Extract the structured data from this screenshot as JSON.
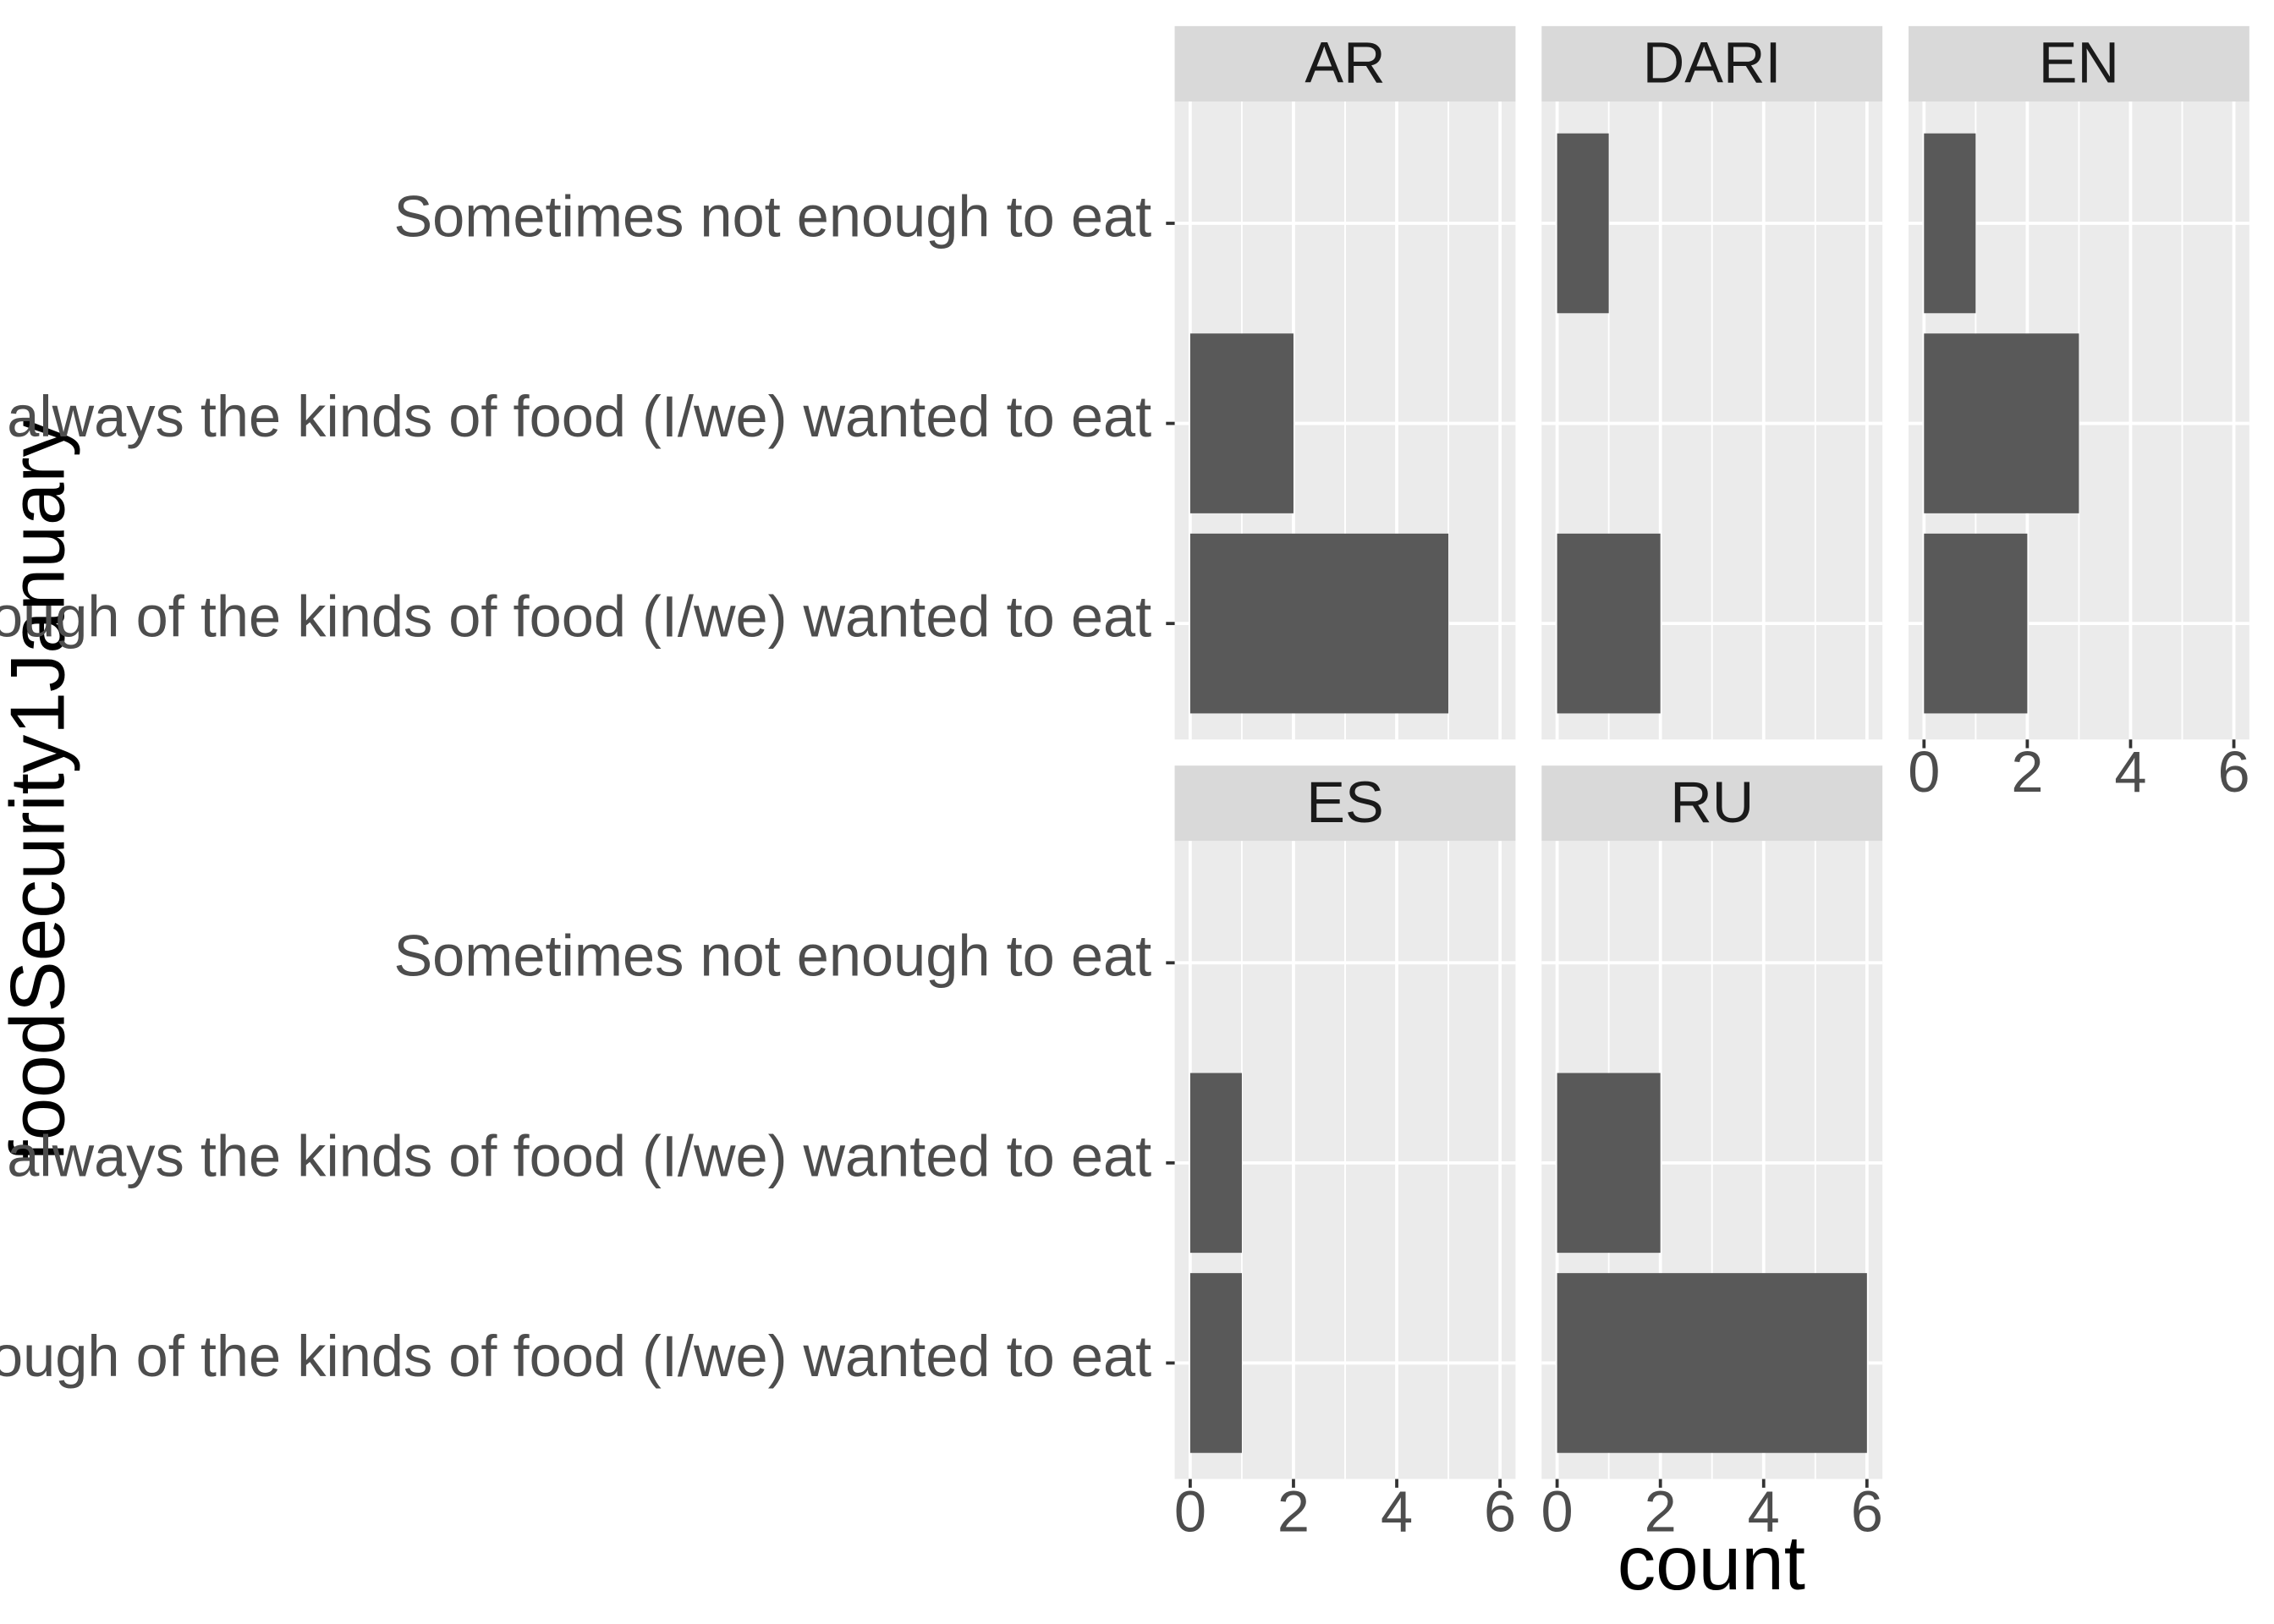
{
  "chart_data": {
    "type": "bar",
    "orientation": "horizontal",
    "xlabel": "count",
    "ylabel": "foodSecurity1January",
    "xlim": [
      0,
      6.3
    ],
    "x_ticks": [
      0,
      2,
      4,
      6
    ],
    "categories": [
      "Sometimes not enough to eat",
      "Enough, but not always the kinds of food (I/we) wanted to eat",
      "Enough of the kinds of food (I/we) wanted to eat"
    ],
    "facets": [
      {
        "label": "AR",
        "values": [
          0,
          2,
          5
        ]
      },
      {
        "label": "DARI",
        "values": [
          1,
          0,
          2
        ]
      },
      {
        "label": "EN",
        "values": [
          1,
          3,
          2
        ]
      },
      {
        "label": "ES",
        "values": [
          0,
          1,
          1
        ]
      },
      {
        "label": "RU",
        "values": [
          0,
          2,
          6
        ]
      }
    ],
    "grid": true,
    "colors": {
      "bar": "#595959",
      "panel_background": "#ebebeb",
      "strip_background": "#d9d9d9",
      "grid_line": "#ffffff"
    }
  }
}
